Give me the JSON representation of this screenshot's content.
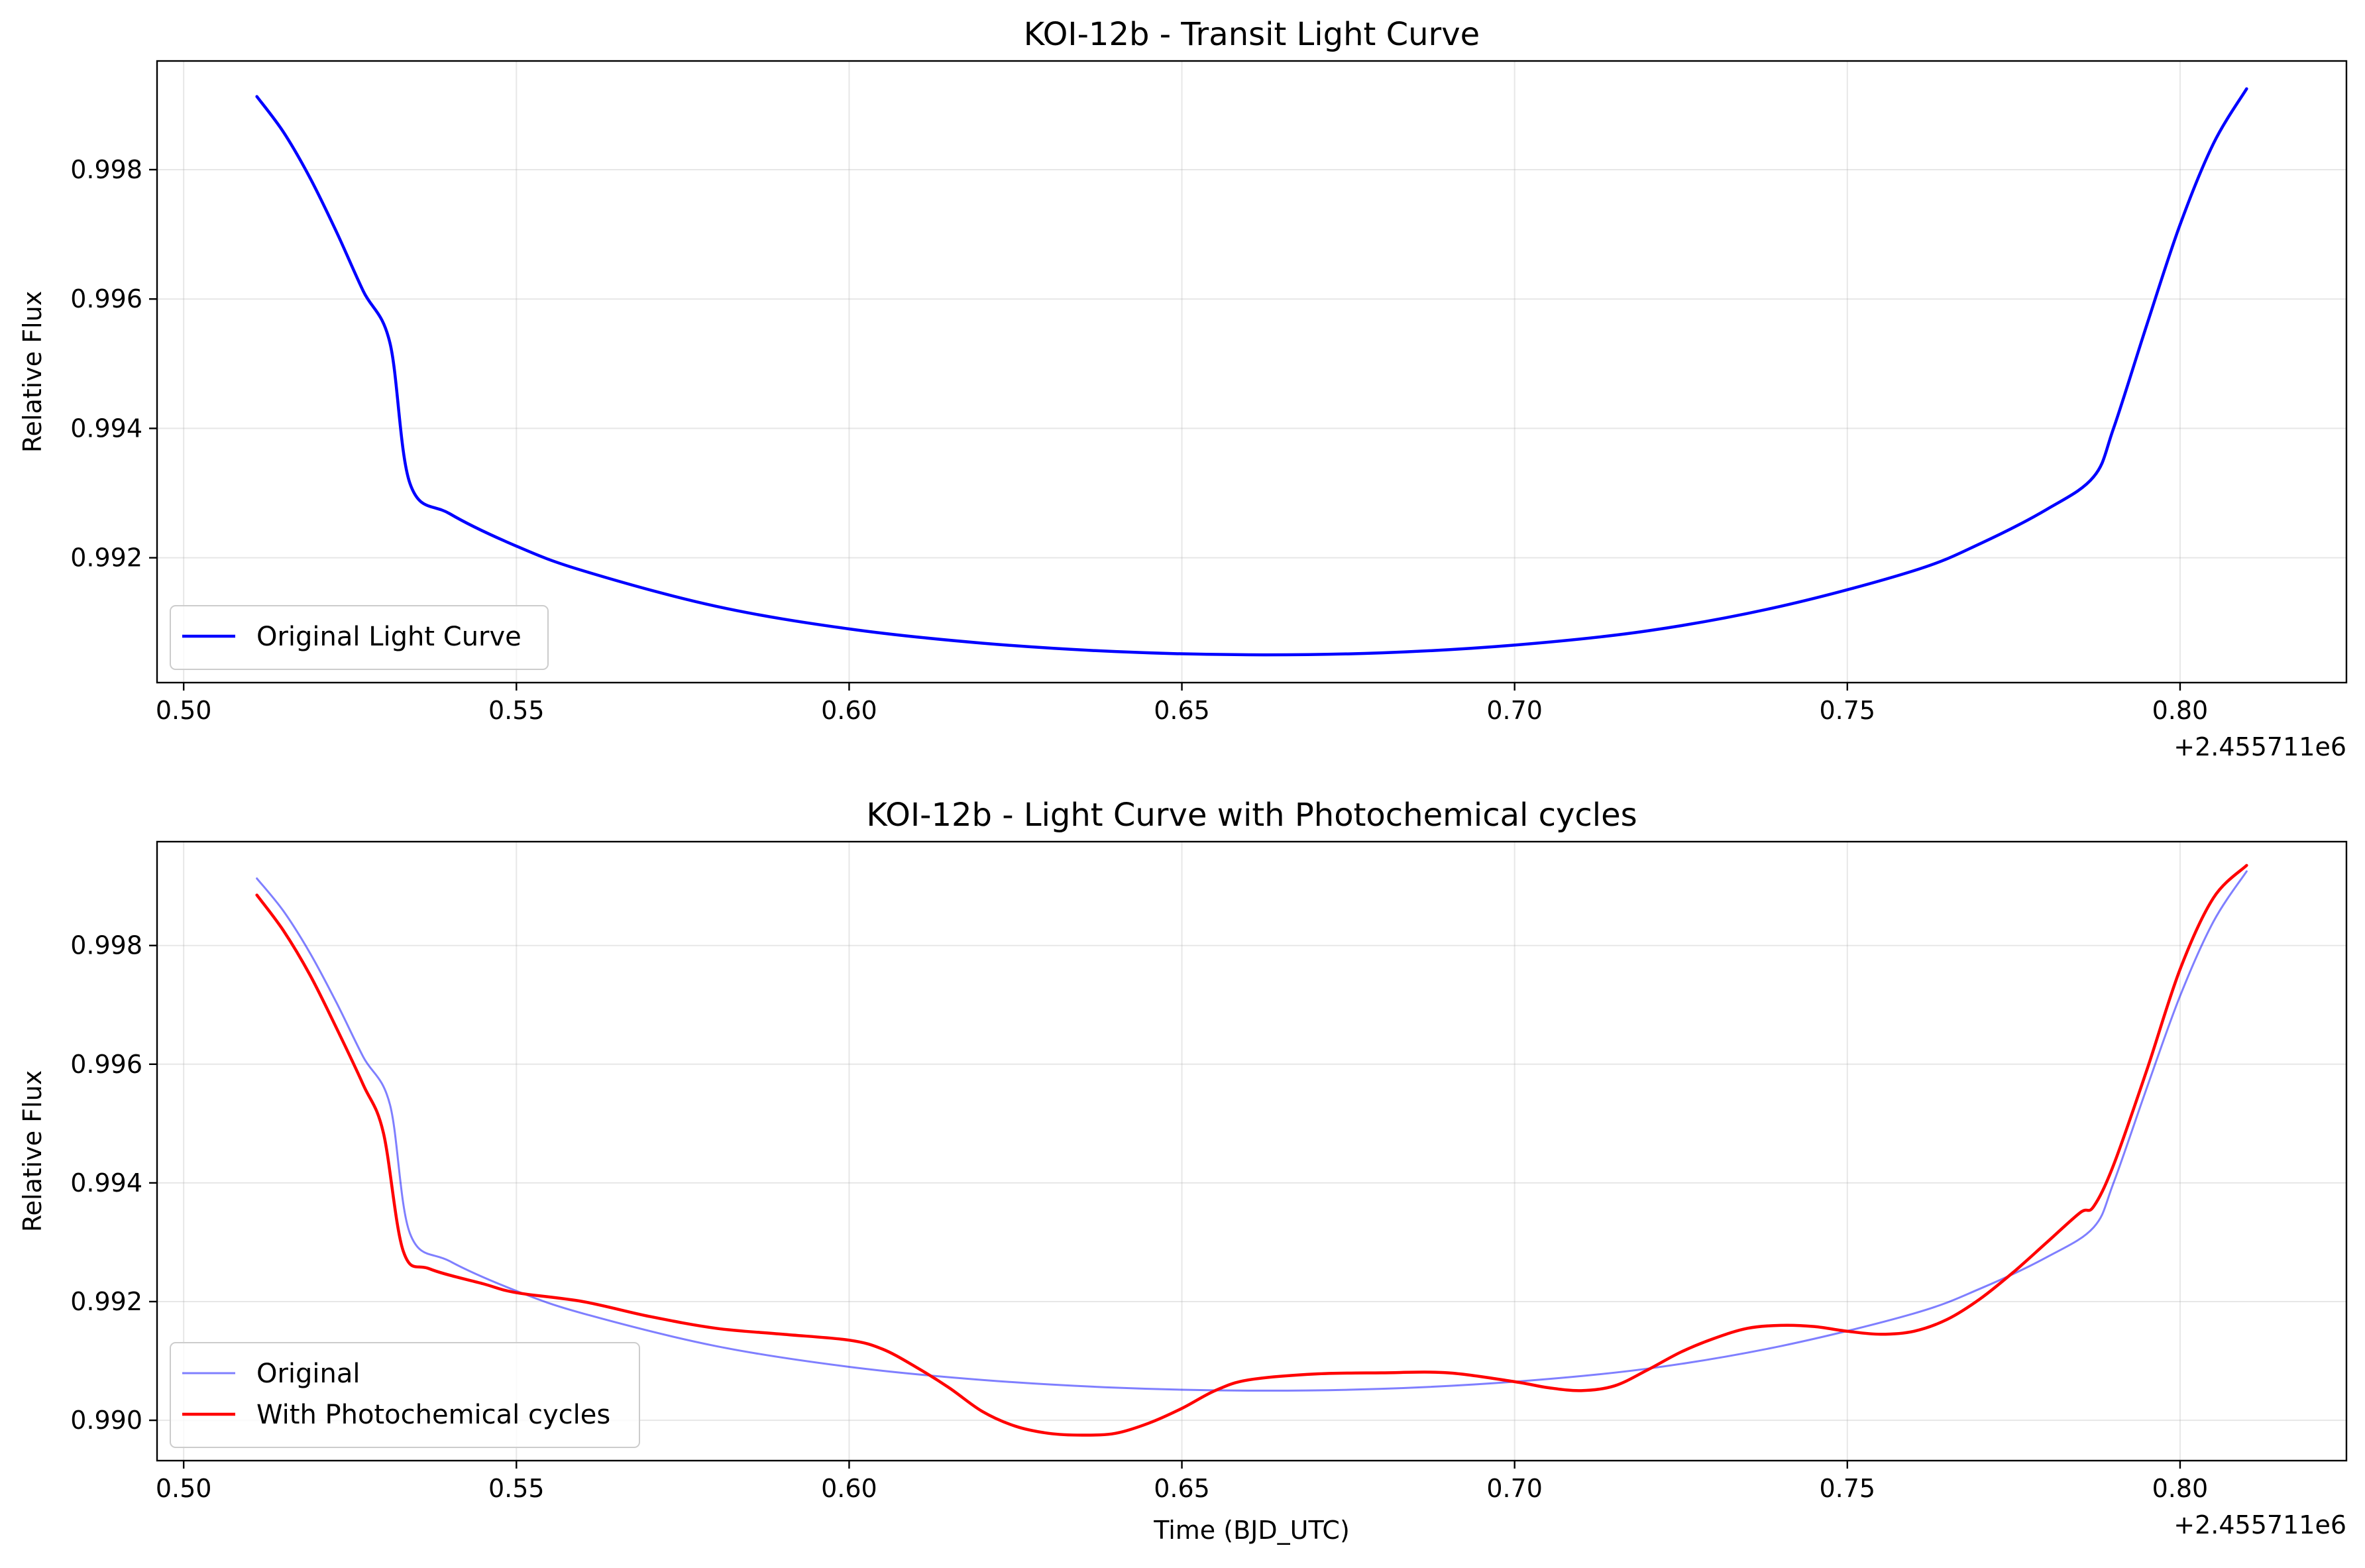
{
  "chart_data": [
    {
      "type": "line",
      "title": "KOI-12b - Transit Light Curve",
      "xlabel": "",
      "ylabel": "Relative Flux",
      "x_offset_label": "+2.455711e6",
      "xlim": [
        0.496,
        0.825
      ],
      "ylim": [
        0.99007,
        0.99968
      ],
      "xticks": [
        0.5,
        0.55,
        0.6,
        0.65,
        0.7,
        0.75,
        0.8
      ],
      "xtick_labels": [
        "0.50",
        "0.55",
        "0.60",
        "0.65",
        "0.70",
        "0.75",
        "0.80"
      ],
      "yticks": [
        0.992,
        0.994,
        0.996,
        0.998
      ],
      "ytick_labels": [
        "0.992",
        "0.994",
        "0.996",
        "0.998"
      ],
      "grid": true,
      "legend_position": "lower-left",
      "series": [
        {
          "name": "Original Light Curve",
          "color": "#0000ff",
          "x": [
            0.511,
            0.515,
            0.519,
            0.523,
            0.527,
            0.531,
            0.534,
            0.54,
            0.55,
            0.56,
            0.58,
            0.6,
            0.62,
            0.64,
            0.66,
            0.68,
            0.7,
            0.72,
            0.74,
            0.76,
            0.77,
            0.78,
            0.787,
            0.79,
            0.795,
            0.8,
            0.805,
            0.81
          ],
          "y": [
            0.99913,
            0.99858,
            0.99787,
            0.99703,
            0.99612,
            0.99532,
            0.99315,
            0.99268,
            0.99218,
            0.9918,
            0.99125,
            0.9909,
            0.99068,
            0.99055,
            0.9905,
            0.99053,
            0.99065,
            0.99087,
            0.99125,
            0.9918,
            0.99222,
            0.99275,
            0.99325,
            0.994,
            0.9956,
            0.99715,
            0.9984,
            0.99925
          ]
        }
      ]
    },
    {
      "type": "line",
      "title": "KOI-12b - Light Curve with Photochemical cycles",
      "xlabel": "Time (BJD_UTC)",
      "ylabel": "Relative Flux",
      "x_offset_label": "+2.455711e6",
      "xlim": [
        0.496,
        0.825
      ],
      "ylim": [
        0.98932,
        0.99975
      ],
      "xticks": [
        0.5,
        0.55,
        0.6,
        0.65,
        0.7,
        0.75,
        0.8
      ],
      "xtick_labels": [
        "0.50",
        "0.55",
        "0.60",
        "0.65",
        "0.70",
        "0.75",
        "0.80"
      ],
      "yticks": [
        0.99,
        0.992,
        0.994,
        0.996,
        0.998
      ],
      "ytick_labels": [
        "0.990",
        "0.992",
        "0.994",
        "0.996",
        "0.998"
      ],
      "grid": true,
      "legend_position": "lower-left",
      "series": [
        {
          "name": "Original",
          "color": "#0000ff",
          "opacity": 0.5,
          "x": [
            0.511,
            0.515,
            0.519,
            0.523,
            0.527,
            0.531,
            0.534,
            0.54,
            0.55,
            0.56,
            0.58,
            0.6,
            0.62,
            0.64,
            0.66,
            0.68,
            0.7,
            0.72,
            0.74,
            0.76,
            0.77,
            0.78,
            0.787,
            0.79,
            0.795,
            0.8,
            0.805,
            0.81
          ],
          "y": [
            0.99913,
            0.99858,
            0.99787,
            0.99703,
            0.99612,
            0.99532,
            0.99315,
            0.99268,
            0.99218,
            0.9918,
            0.99125,
            0.9909,
            0.99068,
            0.99055,
            0.9905,
            0.99053,
            0.99065,
            0.99087,
            0.99125,
            0.9918,
            0.99222,
            0.99275,
            0.99325,
            0.994,
            0.9956,
            0.99715,
            0.9984,
            0.99925
          ]
        },
        {
          "name": "With Photochemical cycles",
          "color": "#ff0000",
          "x": [
            0.511,
            0.515,
            0.519,
            0.523,
            0.527,
            0.53,
            0.533,
            0.537,
            0.545,
            0.55,
            0.56,
            0.57,
            0.58,
            0.59,
            0.6,
            0.605,
            0.61,
            0.615,
            0.62,
            0.625,
            0.63,
            0.635,
            0.64,
            0.645,
            0.65,
            0.655,
            0.66,
            0.67,
            0.68,
            0.69,
            0.7,
            0.705,
            0.71,
            0.715,
            0.72,
            0.725,
            0.73,
            0.735,
            0.74,
            0.745,
            0.75,
            0.755,
            0.76,
            0.765,
            0.77,
            0.775,
            0.78,
            0.785,
            0.787,
            0.79,
            0.795,
            0.8,
            0.805,
            0.81
          ],
          "y": [
            0.99885,
            0.99825,
            0.9975,
            0.9966,
            0.99565,
            0.99485,
            0.99285,
            0.99255,
            0.9923,
            0.99215,
            0.992,
            0.99175,
            0.99155,
            0.99145,
            0.99135,
            0.9912,
            0.9909,
            0.99055,
            0.99015,
            0.9899,
            0.98978,
            0.98975,
            0.98978,
            0.98995,
            0.9902,
            0.9905,
            0.99068,
            0.99078,
            0.9908,
            0.9908,
            0.99065,
            0.99055,
            0.9905,
            0.99058,
            0.99085,
            0.99115,
            0.99138,
            0.99155,
            0.9916,
            0.99158,
            0.9915,
            0.99145,
            0.9915,
            0.9917,
            0.99205,
            0.9925,
            0.993,
            0.9935,
            0.9936,
            0.9943,
            0.9959,
            0.9976,
            0.9988,
            0.99935
          ]
        }
      ]
    }
  ]
}
